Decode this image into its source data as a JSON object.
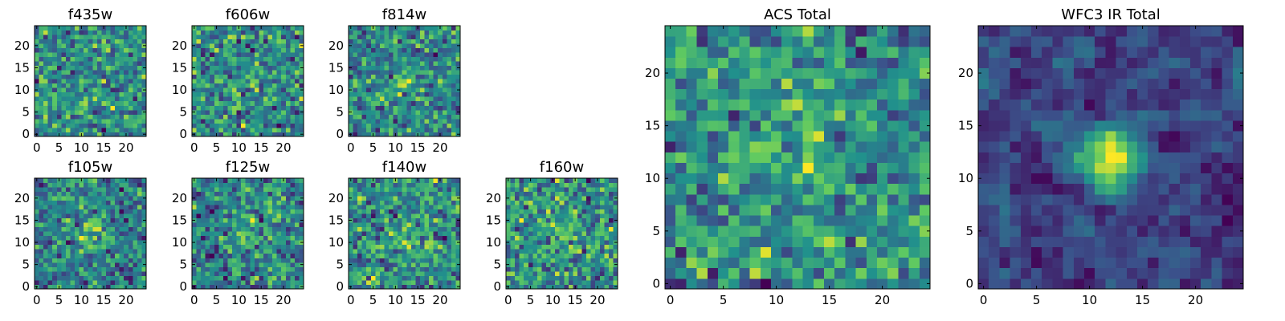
{
  "figure": {
    "colormap": "viridis",
    "colors": [
      "#440154",
      "#3b528b",
      "#21918c",
      "#5ec962",
      "#fde725"
    ]
  },
  "chart_data": [
    {
      "type": "heatmap",
      "title": "f435w",
      "xlim": [
        0,
        24
      ],
      "ylim": [
        0,
        24
      ],
      "grid": false,
      "xticks": [
        0,
        5,
        10,
        15,
        20
      ],
      "yticks": [
        0,
        5,
        10,
        15,
        20
      ],
      "seed": 11,
      "central_peak": 0.0,
      "noise_contrast": 1.0
    },
    {
      "type": "heatmap",
      "title": "f606w",
      "xlim": [
        0,
        24
      ],
      "ylim": [
        0,
        24
      ],
      "grid": false,
      "xticks": [
        0,
        5,
        10,
        15,
        20
      ],
      "yticks": [
        0,
        5,
        10,
        15,
        20
      ],
      "seed": 23,
      "central_peak": 0.05,
      "noise_contrast": 1.0
    },
    {
      "type": "heatmap",
      "title": "f814w",
      "xlim": [
        0,
        24
      ],
      "ylim": [
        0,
        24
      ],
      "grid": false,
      "xticks": [
        0,
        5,
        10,
        15,
        20
      ],
      "yticks": [
        0,
        5,
        10,
        15,
        20
      ],
      "seed": 37,
      "central_peak": 0.2,
      "noise_contrast": 1.0
    },
    {
      "type": "heatmap",
      "title": "f105w",
      "xlim": [
        0,
        24
      ],
      "ylim": [
        0,
        24
      ],
      "grid": false,
      "xticks": [
        0,
        5,
        10,
        15,
        20
      ],
      "yticks": [
        0,
        5,
        10,
        15,
        20
      ],
      "seed": 41,
      "central_peak": 0.3,
      "noise_contrast": 0.8
    },
    {
      "type": "heatmap",
      "title": "f125w",
      "xlim": [
        0,
        24
      ],
      "ylim": [
        0,
        24
      ],
      "grid": false,
      "xticks": [
        0,
        5,
        10,
        15,
        20
      ],
      "yticks": [
        0,
        5,
        10,
        15,
        20
      ],
      "seed": 53,
      "central_peak": 0.25,
      "noise_contrast": 0.85
    },
    {
      "type": "heatmap",
      "title": "f140w",
      "xlim": [
        0,
        24
      ],
      "ylim": [
        0,
        24
      ],
      "grid": false,
      "xticks": [
        0,
        5,
        10,
        15,
        20
      ],
      "yticks": [
        0,
        5,
        10,
        15,
        20
      ],
      "seed": 67,
      "central_peak": 0.2,
      "noise_contrast": 0.9
    },
    {
      "type": "heatmap",
      "title": "f160w",
      "xlim": [
        0,
        24
      ],
      "ylim": [
        0,
        24
      ],
      "grid": false,
      "xticks": [
        0,
        5,
        10,
        15,
        20
      ],
      "yticks": [
        0,
        5,
        10,
        15,
        20
      ],
      "seed": 79,
      "central_peak": 0.15,
      "noise_contrast": 0.95
    },
    {
      "type": "heatmap",
      "title": "ACS Total",
      "xlim": [
        0,
        24
      ],
      "ylim": [
        0,
        24
      ],
      "grid": false,
      "xticks": [
        0,
        5,
        10,
        15,
        20
      ],
      "yticks": [
        0,
        5,
        10,
        15,
        20
      ],
      "seed": 97,
      "central_peak": 0.15,
      "noise_contrast": 0.75
    },
    {
      "type": "heatmap",
      "title": "WFC3 IR Total",
      "xlim": [
        0,
        24
      ],
      "ylim": [
        0,
        24
      ],
      "grid": false,
      "xticks": [
        0,
        5,
        10,
        15,
        20
      ],
      "yticks": [
        0,
        5,
        10,
        15,
        20
      ],
      "seed": 131,
      "central_peak": 0.95,
      "noise_contrast": 0.45
    }
  ]
}
